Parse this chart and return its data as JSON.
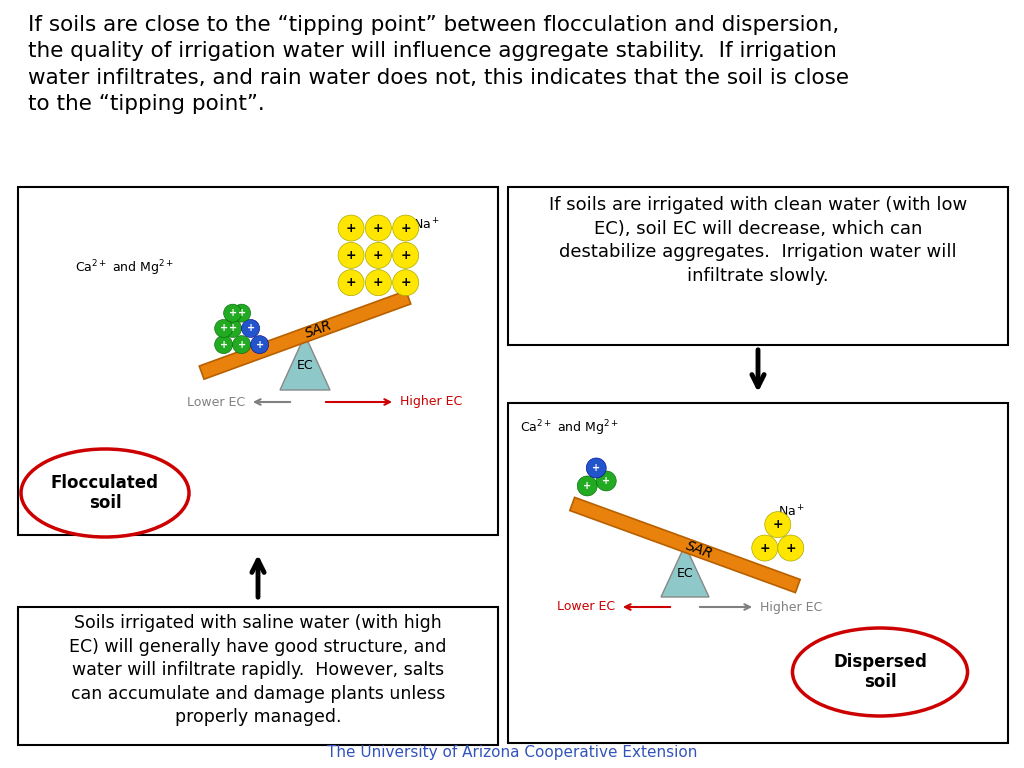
{
  "title_text": "If soils are close to the “tipping point” between flocculation and dispersion,\nthe quality of irrigation water will influence aggregate stability.  If irrigation\nwater infiltrates, and rain water does not, this indicates that the soil is close\nto the “tipping point”.",
  "box1_text": "If soils are irrigated with clean water (with low\nEC), soil EC will decrease, which can\ndestabilize aggregates.  Irrigation water will\ninfiltrate slowly.",
  "box2_text": "Soils irrigated with saline water (with high\nEC) will generally have good structure, and\nwater will infiltrate rapidly.  However, salts\ncan accumulate and damage plants unless\nproperly managed.",
  "footer_text": "The University of Arizona Cooperative Extension",
  "flocculated_label": "Flocculated\nsoil",
  "dispersed_label": "Dispersed\nsoil",
  "ec_label": "EC",
  "sar_label": "SAR",
  "lower_ec_label": "Lower EC",
  "higher_ec_label": "Higher EC",
  "orange_color": "#E8820C",
  "teal_color": "#8FC8C8",
  "yellow_color": "#FFE600",
  "green_color": "#22AA22",
  "blue_color": "#2255CC",
  "red_color": "#CC0000",
  "gray_color": "#888888",
  "footer_color": "#3355BB"
}
